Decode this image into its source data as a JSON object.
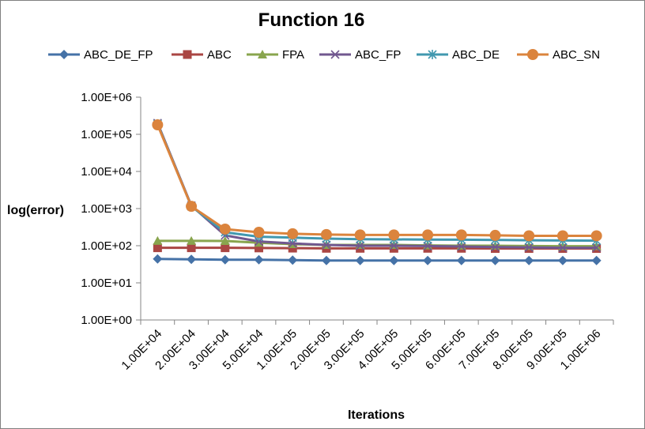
{
  "chart_data": {
    "type": "line",
    "title": "Function 16",
    "xlabel": "Iterations",
    "ylabel": "log(error)",
    "yscale": "log",
    "ylim": [
      1,
      1000000
    ],
    "y_tick_labels": [
      "1.00E+00",
      "1.00E+01",
      "1.00E+02",
      "1.00E+03",
      "1.00E+04",
      "1.00E+05",
      "1.00E+06"
    ],
    "categories": [
      "1.00E+04",
      "2.00E+04",
      "3.00E+04",
      "5.00E+04",
      "1.00E+05",
      "2.00E+05",
      "3.00E+05",
      "4.00E+05",
      "5.00E+05",
      "6.00E+05",
      "7.00E+05",
      "8.00E+05",
      "9.00E+05",
      "1.00E+06"
    ],
    "grid": false,
    "legend_position": "top",
    "series": [
      {
        "name": "ABC_DE_FP",
        "color": "#4572A7",
        "marker": "diamond",
        "values": [
          44,
          43,
          42,
          42,
          41,
          40,
          40,
          40,
          40,
          40,
          40,
          40,
          40,
          40
        ]
      },
      {
        "name": "ABC",
        "color": "#AA4643",
        "marker": "square",
        "values": [
          88,
          88,
          88,
          87,
          86,
          85,
          85,
          85,
          85,
          85,
          84,
          84,
          84,
          84
        ]
      },
      {
        "name": "FPA",
        "color": "#89A54E",
        "marker": "triangle",
        "values": [
          135,
          135,
          134,
          120,
          110,
          105,
          105,
          105,
          102,
          100,
          100,
          98,
          97,
          97
        ]
      },
      {
        "name": "ABC_FP",
        "color": "#71588F",
        "marker": "x",
        "values": [
          200000,
          1200,
          190,
          130,
          115,
          105,
          100,
          100,
          98,
          95,
          92,
          90,
          88,
          88
        ]
      },
      {
        "name": "ABC_DE",
        "color": "#4198AF",
        "marker": "star",
        "values": [
          190000,
          1150,
          230,
          175,
          165,
          155,
          150,
          148,
          146,
          145,
          143,
          140,
          138,
          137
        ]
      },
      {
        "name": "ABC_SN",
        "color": "#DB843D",
        "marker": "circle",
        "values": [
          180000,
          1150,
          280,
          230,
          210,
          200,
          195,
          195,
          195,
          195,
          190,
          185,
          185,
          185
        ]
      }
    ]
  }
}
